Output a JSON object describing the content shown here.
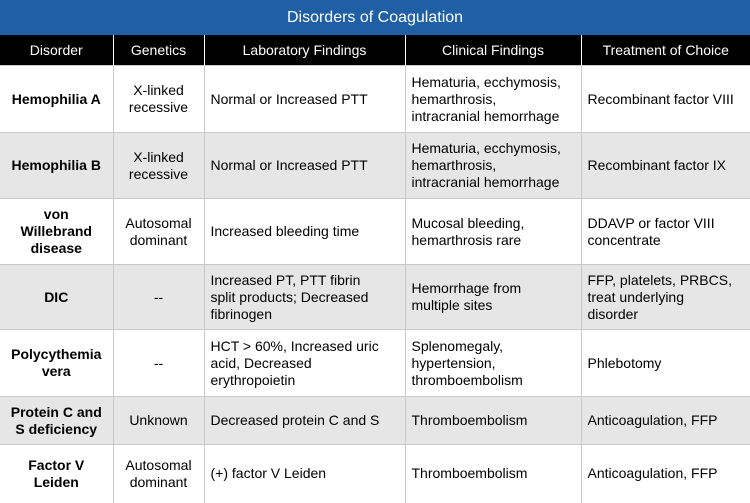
{
  "title": "Disorders of Coagulation",
  "columns": [
    "Disorder",
    "Genetics",
    "Laboratory Findings",
    "Clinical Findings",
    "Treatment of Choice"
  ],
  "rows": [
    {
      "disorder": [
        "Hemophilia A"
      ],
      "genetics": [
        "X-linked",
        "recessive"
      ],
      "lab": [
        "Normal or Increased PTT"
      ],
      "clinical": [
        "Hematuria, ecchymosis,",
        "hemarthrosis,",
        "intracranial hemorrhage"
      ],
      "treatment": [
        "Recombinant factor VIII"
      ]
    },
    {
      "disorder": [
        "Hemophilia B"
      ],
      "genetics": [
        "X-linked",
        "recessive"
      ],
      "lab": [
        "Normal or Increased PTT"
      ],
      "clinical": [
        "Hematuria, ecchymosis,",
        "hemarthrosis,",
        "intracranial hemorrhage"
      ],
      "treatment": [
        "Recombinant factor IX"
      ]
    },
    {
      "disorder": [
        "von",
        "Willebrand",
        "disease"
      ],
      "genetics": [
        "Autosomal",
        "dominant"
      ],
      "lab": [
        "Increased bleeding time"
      ],
      "clinical": [
        "Mucosal bleeding,",
        "hemarthrosis rare"
      ],
      "treatment": [
        "DDAVP or factor VIII",
        "concentrate"
      ]
    },
    {
      "disorder": [
        "DIC"
      ],
      "genetics": [
        "--"
      ],
      "lab": [
        "Increased PT, PTT fibrin",
        "split products; Decreased",
        "fibrinogen"
      ],
      "clinical": [
        "Hemorrhage from",
        "multiple sites"
      ],
      "treatment": [
        "FFP, platelets, PRBCS,",
        "treat underlying",
        "disorder"
      ]
    },
    {
      "disorder": [
        "Polycythemia",
        "vera"
      ],
      "genetics": [
        "--"
      ],
      "lab": [
        "HCT > 60%, Increased uric",
        "acid, Decreased",
        "erythropoietin"
      ],
      "clinical": [
        "Splenomegaly,",
        "hypertension,",
        "thromboembolism"
      ],
      "treatment": [
        "Phlebotomy"
      ]
    },
    {
      "disorder": [
        "Protein C and",
        "S deficiency"
      ],
      "genetics": [
        "Unknown"
      ],
      "lab": [
        "Decreased protein C and S"
      ],
      "clinical": [
        "Thromboembolism"
      ],
      "treatment": [
        "Anticoagulation, FFP"
      ]
    },
    {
      "disorder": [
        "Factor V",
        "Leiden"
      ],
      "genetics": [
        "Autosomal",
        "dominant"
      ],
      "lab": [
        "(+) factor V Leiden"
      ],
      "clinical": [
        "Thromboembolism"
      ],
      "treatment": [
        "Anticoagulation, FFP"
      ]
    }
  ]
}
